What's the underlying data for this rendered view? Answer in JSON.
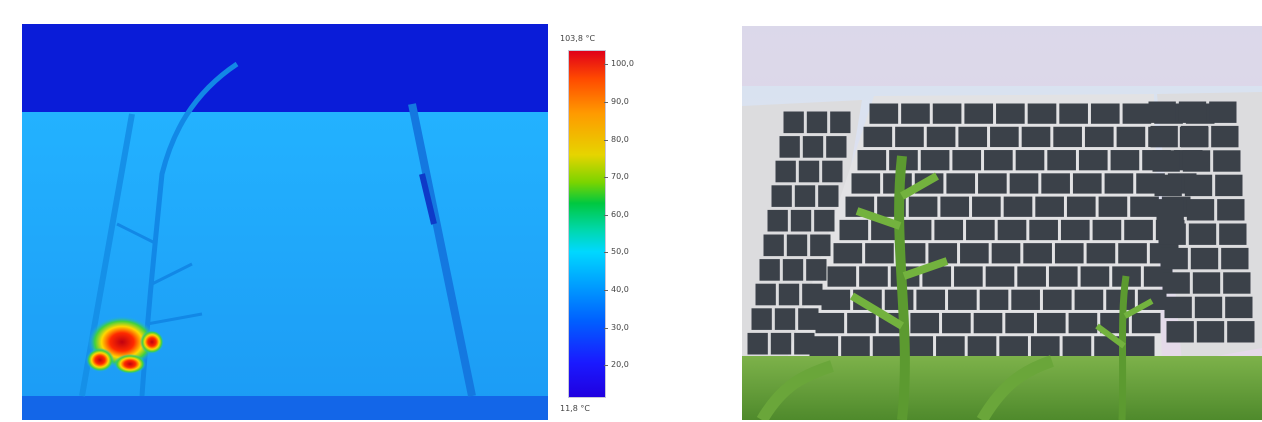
{
  "thermal_image": {
    "icon": "thermal-camera-image",
    "hotspot_color": "#e00010",
    "panel_color": "#16a6ff",
    "sky_color": "#0a1cd8"
  },
  "color_scale": {
    "max_label": "103,8 °C",
    "min_label": "11,8 °C",
    "ticks": [
      {
        "label": "100,0",
        "value": 100
      },
      {
        "label": "90,0",
        "value": 90
      },
      {
        "label": "80,0",
        "value": 80
      },
      {
        "label": "70,0",
        "value": 70
      },
      {
        "label": "60,0",
        "value": 60
      },
      {
        "label": "50,0",
        "value": 50
      },
      {
        "label": "40,0",
        "value": 40
      },
      {
        "label": "30,0",
        "value": 30
      },
      {
        "label": "20,0",
        "value": 20
      }
    ],
    "range": [
      11.8,
      103.8
    ]
  },
  "photo": {
    "icon": "solar-panel-photo",
    "sky_color": "#dfe6ef",
    "cell_color": "#3b4149",
    "vegetation_color": "#6fae3a"
  }
}
